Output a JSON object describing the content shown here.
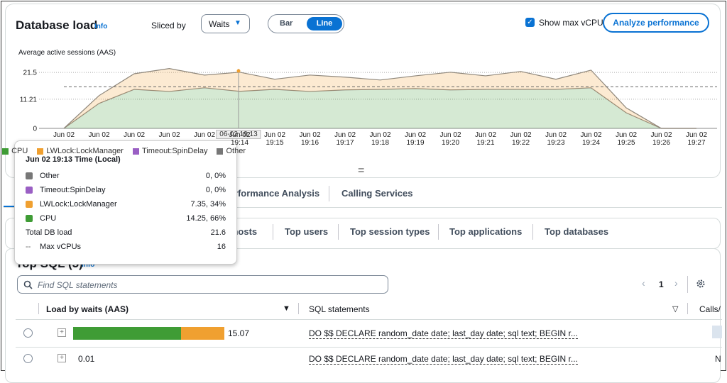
{
  "header": {
    "title": "Database load",
    "info": "Info",
    "sliced_by_label": "Sliced by",
    "sliced_by_value": "Waits",
    "toggle": [
      "Bar",
      "Line"
    ],
    "show_max_vcpu": "Show max vCPU",
    "analyze_button": "Analyze performance"
  },
  "chart_data": {
    "type": "area",
    "y_label": "Average active sessions (AAS)",
    "categories": [
      "Jun 02",
      "Jun 02",
      "Jun 02",
      "Jun 02",
      "Jun 02",
      "Jun 02\n19:14",
      "Jun 02\n19:15",
      "Jun 02\n19:16",
      "Jun 02\n19:17",
      "Jun 02\n19:18",
      "Jun 02\n19:19",
      "Jun 02\n19:20",
      "Jun 02\n19:21",
      "Jun 02\n19:22",
      "Jun 02\n19:23",
      "Jun 02\n19:24",
      "Jun 02\n19:25",
      "Jun 02\n19:26",
      "Jun 02\n19:27"
    ],
    "series": [
      {
        "name": "CPU",
        "color": "#3f9c35",
        "values": [
          0,
          9.6,
          15.0,
          14.2,
          15.6,
          14.25,
          15.0,
          14.2,
          14.8,
          15.0,
          15.3,
          14.8,
          15.0,
          15.0,
          15.0,
          15.6,
          6.0,
          0,
          0
        ]
      },
      {
        "name": "LWLock:LockManager",
        "color": "#f0a030",
        "values": [
          0,
          3.0,
          6.0,
          8.8,
          4.9,
          7.35,
          3.9,
          6.3,
          4.9,
          3.6,
          4.9,
          6.8,
          5.2,
          6.9,
          3.9,
          6.8,
          1.9,
          0,
          0
        ]
      },
      {
        "name": "Timeout:SpinDelay",
        "color": "#9a5fc4",
        "values": [
          0,
          0,
          0,
          0,
          0,
          0,
          0,
          0,
          0,
          0,
          0,
          0,
          0,
          0,
          0,
          0,
          0,
          0,
          0
        ]
      },
      {
        "name": "Other",
        "color": "#777777",
        "values": [
          0,
          0,
          0,
          0,
          0,
          0,
          0,
          0,
          0,
          0,
          0,
          0,
          0,
          0,
          0,
          0,
          0,
          0,
          0
        ]
      }
    ],
    "ylim": [
      0,
      24
    ],
    "yticks": [
      0,
      11.21,
      21.5
    ],
    "grid": true,
    "max_vcpu": 16,
    "crosshair_label": "06-02 19:13"
  },
  "tooltip": {
    "title": "Jun 02 19:13 Time (Local)",
    "rows": [
      {
        "name": "Other",
        "value": "0, 0%",
        "color": "#777777"
      },
      {
        "name": "Timeout:SpinDelay",
        "value": "0, 0%",
        "color": "#9a5fc4"
      },
      {
        "name": "LWLock:LockManager",
        "value": "7.35, 34%",
        "color": "#f0a030"
      },
      {
        "name": "CPU",
        "value": "14.25, 66%",
        "color": "#3f9c35"
      }
    ],
    "total_label": "Total DB load",
    "total": 21.6,
    "max_label": "Max vCPUs",
    "max": 16
  },
  "tabs": [
    "Performance Analysis",
    "Calling Services"
  ],
  "sub_tabs": [
    "Top hosts",
    "Top users",
    "Top session types",
    "Top applications",
    "Top databases"
  ],
  "top_sql": {
    "title": "Top SQL (5)",
    "info": "Info",
    "search_placeholder": "Find SQL statements",
    "page": 1,
    "columns": [
      "Load by waits (AAS)",
      "SQL statements",
      "Calls/"
    ],
    "rows": [
      {
        "load": 15.07,
        "segments": [
          10.76,
          4.31
        ],
        "sql": "DO $$ DECLARE random_date date; last_day date; sql text; BEGIN r..."
      },
      {
        "load": 0.01,
        "sql": "DO $$ DECLARE random_date date; last_day date; sql text; BEGIN r...",
        "calls": "N"
      }
    ]
  }
}
